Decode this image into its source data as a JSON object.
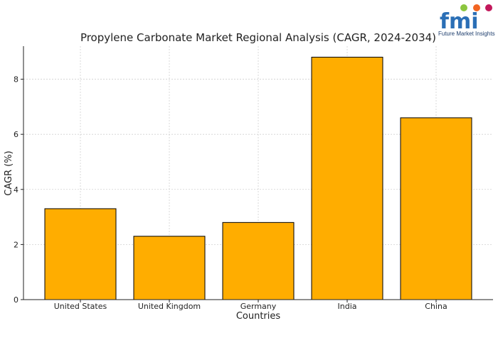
{
  "logo": {
    "brand": "fmi",
    "tagline": "Future Market Insights"
  },
  "chart_data": {
    "type": "bar",
    "title": "Propylene Carbonate Market Regional Analysis (CAGR, 2024-2034)",
    "xlabel": "Countries",
    "ylabel": "CAGR (%)",
    "categories": [
      "United States",
      "United Kingdom",
      "Germany",
      "India",
      "China"
    ],
    "values": [
      3.3,
      2.3,
      2.8,
      8.8,
      6.6
    ],
    "ylim": [
      0,
      9.2
    ],
    "yticks": [
      0,
      2,
      4,
      6,
      8
    ],
    "bar_color": "#ffad00",
    "grid": true
  }
}
